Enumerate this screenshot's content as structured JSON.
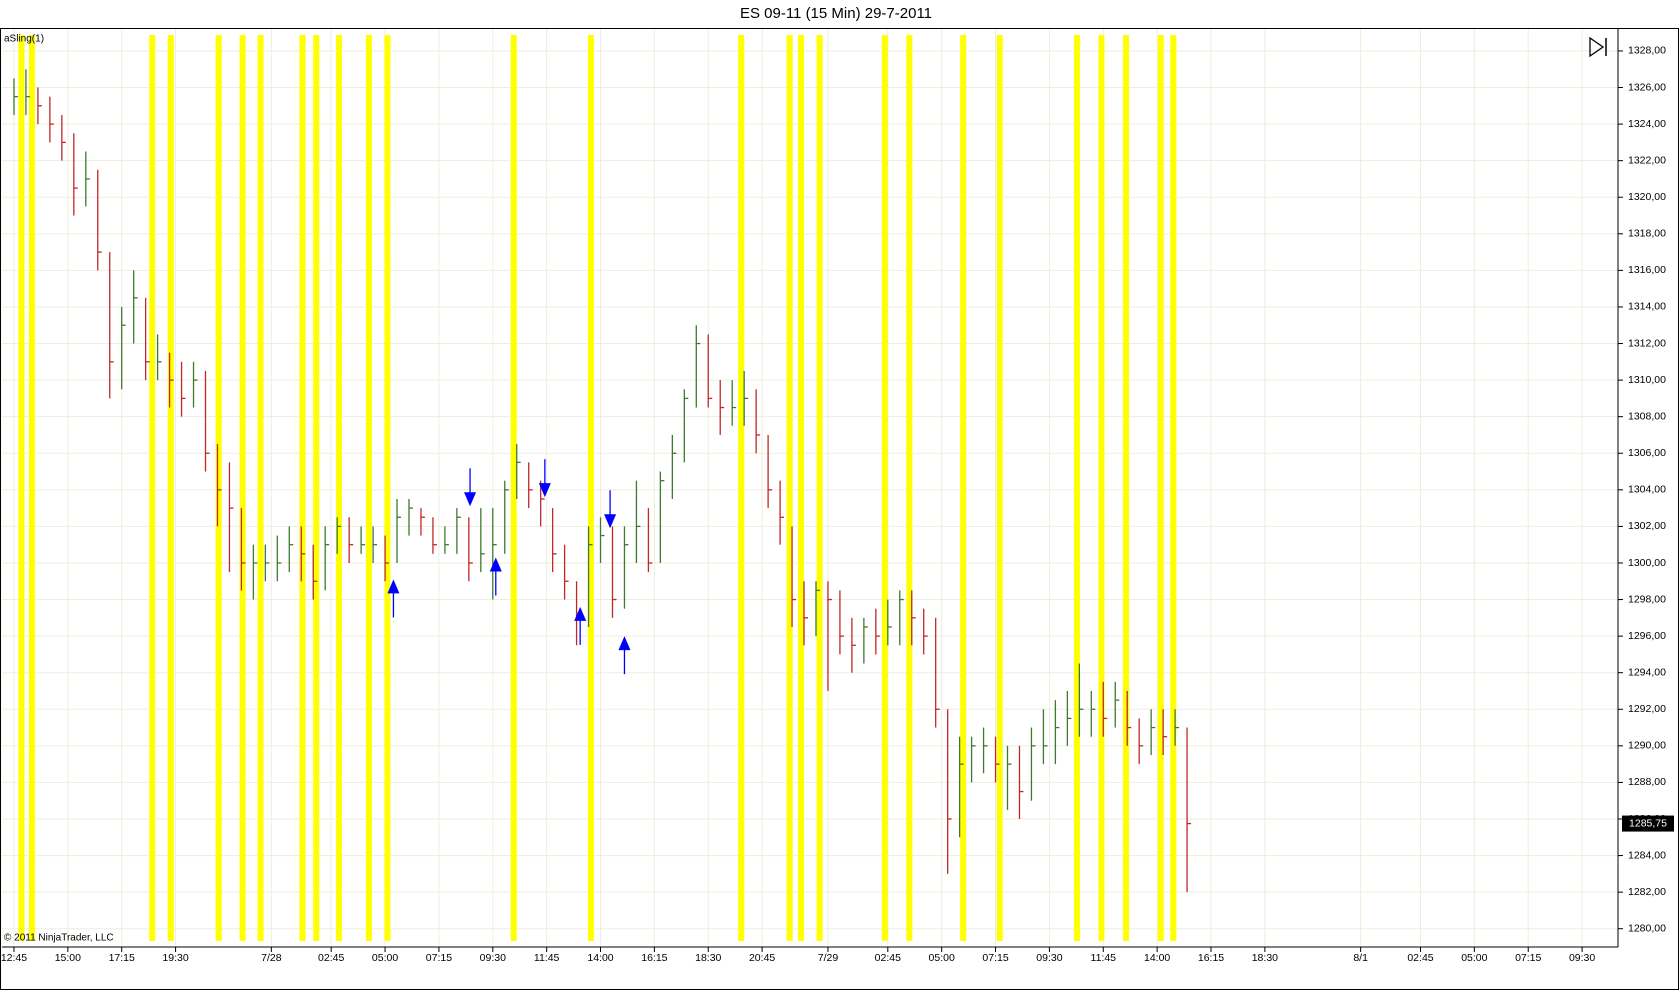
{
  "chart_data": {
    "type": "ohlc",
    "title": "ES 09-11 (15 Min)  29-7-2011",
    "indicator_label": "aSling(1)",
    "copyright": "© 2011 NinjaTrader, LLC",
    "up_color": "#3d7a30",
    "down_color": "#c0282a",
    "highlight_color": "#ffff00",
    "arrow_color": "#0000ff",
    "grid": true,
    "xlim": [
      -2,
      268
    ],
    "ylim": [
      1279,
      1329.2
    ],
    "xticks": [
      {
        "value": 0,
        "label": "12:45"
      },
      {
        "value": 9,
        "label": "15:00"
      },
      {
        "value": 18,
        "label": "17:15"
      },
      {
        "value": 27,
        "label": "19:30"
      },
      {
        "value": 43,
        "label": "7/28"
      },
      {
        "value": 53,
        "label": "02:45"
      },
      {
        "value": 62,
        "label": "05:00"
      },
      {
        "value": 71,
        "label": "07:15"
      },
      {
        "value": 80,
        "label": "09:30"
      },
      {
        "value": 89,
        "label": "11:45"
      },
      {
        "value": 98,
        "label": "14:00"
      },
      {
        "value": 107,
        "label": "16:15"
      },
      {
        "value": 116,
        "label": "18:30"
      },
      {
        "value": 125,
        "label": "20:45"
      },
      {
        "value": 136,
        "label": "7/29"
      },
      {
        "value": 146,
        "label": "02:45"
      },
      {
        "value": 155,
        "label": "05:00"
      },
      {
        "value": 164,
        "label": "07:15"
      },
      {
        "value": 173,
        "label": "09:30"
      },
      {
        "value": 182,
        "label": "11:45"
      },
      {
        "value": 191,
        "label": "14:00"
      },
      {
        "value": 200,
        "label": "16:15"
      },
      {
        "value": 209,
        "label": "18:30"
      },
      {
        "value": 225,
        "label": "8/1"
      },
      {
        "value": 235,
        "label": "02:45"
      },
      {
        "value": 244,
        "label": "05:00"
      },
      {
        "value": 253,
        "label": "07:15"
      },
      {
        "value": 262,
        "label": "09:30"
      }
    ],
    "yticks": [
      {
        "value": 1280,
        "label": "1280,00"
      },
      {
        "value": 1282,
        "label": "1282,00"
      },
      {
        "value": 1284,
        "label": "1284,00"
      },
      {
        "value": 1286,
        "label": "1286,00"
      },
      {
        "value": 1288,
        "label": "1288,00"
      },
      {
        "value": 1290,
        "label": "1290,00"
      },
      {
        "value": 1292,
        "label": "1292,00"
      },
      {
        "value": 1294,
        "label": "1294,00"
      },
      {
        "value": 1296,
        "label": "1296,00"
      },
      {
        "value": 1298,
        "label": "1298,00"
      },
      {
        "value": 1300,
        "label": "1300,00"
      },
      {
        "value": 1302,
        "label": "1302,00"
      },
      {
        "value": 1304,
        "label": "1304,00"
      },
      {
        "value": 1306,
        "label": "1306,00"
      },
      {
        "value": 1308,
        "label": "1308,00"
      },
      {
        "value": 1310,
        "label": "1310,00"
      },
      {
        "value": 1312,
        "label": "1312,00"
      },
      {
        "value": 1314,
        "label": "1314,00"
      },
      {
        "value": 1316,
        "label": "1316,00"
      },
      {
        "value": 1318,
        "label": "1318,00"
      },
      {
        "value": 1320,
        "label": "1320,00"
      },
      {
        "value": 1322,
        "label": "1322,00"
      },
      {
        "value": 1324,
        "label": "1324,00"
      },
      {
        "value": 1326,
        "label": "1326,00"
      },
      {
        "value": 1328,
        "label": "1328,00"
      }
    ],
    "x": [
      0,
      2,
      4,
      6,
      8,
      10,
      12,
      14,
      16,
      18,
      20,
      22,
      24,
      26,
      28,
      30,
      32,
      34,
      36,
      38,
      40,
      42,
      44,
      46,
      48,
      50,
      52,
      54,
      56,
      58,
      60,
      62,
      64,
      66,
      68,
      70,
      72,
      74,
      76,
      78,
      80,
      82,
      84,
      86,
      88,
      90,
      92,
      94,
      96,
      98,
      100,
      102,
      104,
      106,
      108,
      110,
      112,
      114,
      116,
      118,
      120,
      122,
      124,
      126,
      128,
      130,
      132,
      134,
      136,
      138,
      140,
      142,
      144,
      146,
      148,
      150,
      152,
      154,
      156,
      158,
      160,
      162,
      164,
      166,
      168,
      170,
      172,
      174,
      176,
      178,
      180,
      182,
      184,
      186,
      188,
      190,
      192,
      194,
      196
    ],
    "high": [
      1326.5,
      1327,
      1326,
      1325.5,
      1324.5,
      1323.5,
      1322.5,
      1321.5,
      1317,
      1314,
      1316,
      1314.5,
      1312.5,
      1311.5,
      1311,
      1311,
      1310.5,
      1306.5,
      1305.5,
      1303,
      1301,
      1301,
      1301.5,
      1302,
      1302,
      1301,
      1302,
      1302.5,
      1302.5,
      1302,
      1302,
      1301.5,
      1303.5,
      1303.5,
      1303,
      1302.5,
      1302,
      1303,
      1302.5,
      1303,
      1303,
      1304.5,
      1306.5,
      1305.5,
      1304.5,
      1303,
      1301,
      1299,
      1302,
      1302.5,
      1302,
      1302,
      1304.5,
      1303,
      1305,
      1307,
      1309.5,
      1313,
      1312.5,
      1310,
      1310,
      1310.5,
      1309.5,
      1307,
      1304.5,
      1302,
      1299,
      1299,
      1299,
      1298.5,
      1297,
      1297,
      1297.5,
      1298,
      1298.5,
      1298.5,
      1297.5,
      1297,
      1292,
      1290.5,
      1290.5,
      1291,
      1290.5,
      1290,
      1290,
      1291,
      1292,
      1292.5,
      1293,
      1294.5,
      1293,
      1293.5,
      1293.5,
      1293,
      1291.5,
      1292,
      1292,
      1292,
      1291
    ],
    "low": [
      1324.5,
      1324.5,
      1324,
      1323,
      1322,
      1319,
      1319.5,
      1316,
      1309,
      1309.5,
      1312,
      1310,
      1310,
      1308.5,
      1308,
      1308.5,
      1305,
      1302,
      1299.5,
      1298.5,
      1298,
      1299,
      1299,
      1299.5,
      1299,
      1298,
      1298.5,
      1300.5,
      1300,
      1300.5,
      1300,
      1299,
      1300,
      1301.5,
      1301.5,
      1300.5,
      1300.5,
      1300.5,
      1299,
      1299.5,
      1298,
      1300.5,
      1303.5,
      1303,
      1302,
      1299.5,
      1298,
      1295.5,
      1296.5,
      1300,
      1297,
      1297.5,
      1300,
      1299.5,
      1300,
      1303.5,
      1305.5,
      1308.5,
      1308.5,
      1307,
      1307.5,
      1307.5,
      1306,
      1303,
      1301,
      1296.5,
      1295.5,
      1296,
      1293,
      1295,
      1294,
      1294.5,
      1295,
      1295.5,
      1295.5,
      1295.5,
      1295,
      1291,
      1283,
      1285,
      1288,
      1288.5,
      1288,
      1286.5,
      1286,
      1287,
      1289,
      1289,
      1290,
      1290.5,
      1290.5,
      1290.5,
      1291,
      1290,
      1289,
      1289.5,
      1289.5,
      1290,
      1282
    ],
    "close": [
      1325.5,
      1325.5,
      1325,
      1324,
      1323,
      1320.5,
      1321,
      1317,
      1311,
      1313,
      1314.5,
      1311,
      1311,
      1310,
      1309,
      1310,
      1306,
      1304,
      1303,
      1300,
      1300,
      1300,
      1300,
      1301,
      1300.5,
      1299,
      1301,
      1302,
      1301,
      1301,
      1301,
      1300,
      1302.5,
      1303,
      1302.5,
      1301,
      1301,
      1302.5,
      1300,
      1300.5,
      1301,
      1304,
      1305.5,
      1304,
      1303.5,
      1300.5,
      1299,
      1297,
      1301,
      1301.5,
      1298,
      1301,
      1302,
      1300,
      1304.5,
      1306,
      1309,
      1312,
      1309,
      1308.5,
      1308.5,
      1309,
      1307,
      1304,
      1302.5,
      1298,
      1297,
      1298.5,
      1298,
      1296,
      1295.5,
      1296.5,
      1296,
      1296.5,
      1298,
      1297,
      1296,
      1292,
      1286,
      1289,
      1290,
      1290,
      1289,
      1289,
      1287.5,
      1290,
      1290,
      1291,
      1291.5,
      1292,
      1292,
      1291.5,
      1292.5,
      1291,
      1290,
      1291,
      1290.5,
      1291,
      1285.75
    ],
    "highlights": [
      1.25,
      3,
      23.1,
      26.2,
      34.2,
      38.2,
      41.2,
      48.2,
      50.5,
      54.3,
      59.3,
      62.4,
      83.5,
      96.4,
      121.5,
      129.6,
      131.5,
      134.6,
      145.5,
      149.6,
      158.6,
      164.7,
      177.6,
      181.7,
      185.8,
      191.6,
      193.7
    ],
    "arrows": [
      {
        "x": 63.4,
        "y": 1299.1,
        "direction": "up"
      },
      {
        "x": 76.2,
        "y": 1303.1,
        "direction": "down"
      },
      {
        "x": 80.5,
        "y": 1300.3,
        "direction": "up"
      },
      {
        "x": 88.7,
        "y": 1303.6,
        "direction": "down"
      },
      {
        "x": 94.6,
        "y": 1297.6,
        "direction": "up"
      },
      {
        "x": 99.6,
        "y": 1301.9,
        "direction": "down"
      },
      {
        "x": 102,
        "y": 1296,
        "direction": "up"
      }
    ],
    "last_price": 1285.75,
    "last_price_label": "1285,75"
  }
}
